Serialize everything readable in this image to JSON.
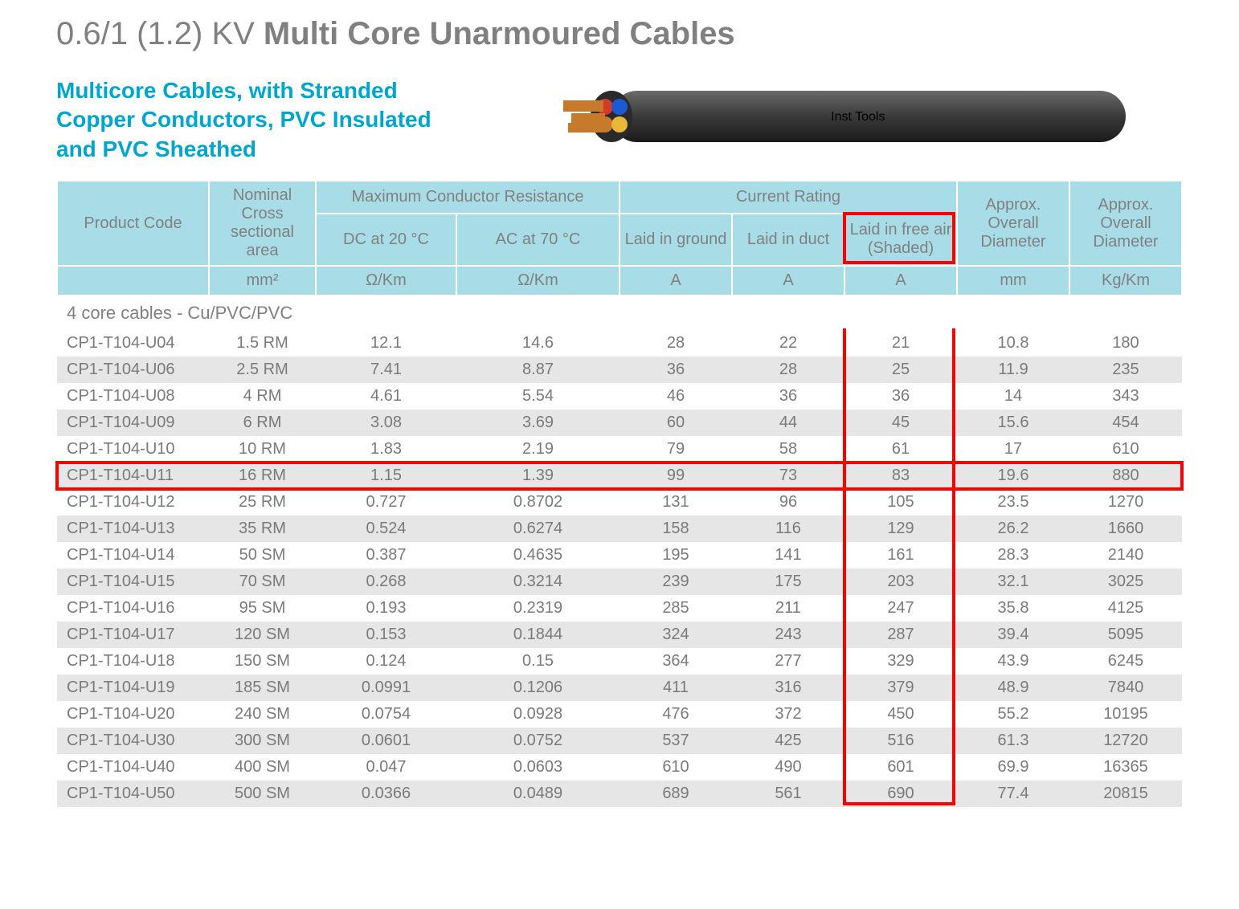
{
  "title_prefix": "0.6/1 (1.2) KV  ",
  "title_bold": "Multi Core Unarmoured Cables",
  "subtitle": "Multicore Cables, with Stranded Copper Conductors, PVC Insulated and PVC Sheathed",
  "watermark": "Inst Tools",
  "header": {
    "product_code": "Product Code",
    "cross_section": "Nominal Cross sectional area",
    "max_resistance": "Maximum Conductor Resistance",
    "dc20": "DC at 20 °C",
    "ac70": "AC at 70 °C",
    "current_rating": "Current Rating",
    "laid_ground": "Laid in ground",
    "laid_duct": "Laid in duct",
    "laid_air": "Laid in free air (Shaded)",
    "diameter": "Approx. Overall Diameter",
    "weight": "Approx. Overall Diameter",
    "u_mm2": "mm²",
    "u_ohmkm": "Ω/Km",
    "u_a": "A",
    "u_mm": "mm",
    "u_kgkm": "Kg/Km"
  },
  "section_label": "4 core cables - Cu/PVC/PVC",
  "rows": [
    {
      "code": "CP1-T104-U04",
      "mm2": "1.5 RM",
      "dc": "12.1",
      "ac": "14.6",
      "g": "28",
      "d": "22",
      "a": "21",
      "dia": "10.8",
      "kg": "180"
    },
    {
      "code": "CP1-T104-U06",
      "mm2": "2.5 RM",
      "dc": "7.41",
      "ac": "8.87",
      "g": "36",
      "d": "28",
      "a": "25",
      "dia": "11.9",
      "kg": "235"
    },
    {
      "code": "CP1-T104-U08",
      "mm2": "4 RM",
      "dc": "4.61",
      "ac": "5.54",
      "g": "46",
      "d": "36",
      "a": "36",
      "dia": "14",
      "kg": "343"
    },
    {
      "code": "CP1-T104-U09",
      "mm2": "6 RM",
      "dc": "3.08",
      "ac": "3.69",
      "g": "60",
      "d": "44",
      "a": "45",
      "dia": "15.6",
      "kg": "454"
    },
    {
      "code": "CP1-T104-U10",
      "mm2": "10 RM",
      "dc": "1.83",
      "ac": "2.19",
      "g": "79",
      "d": "58",
      "a": "61",
      "dia": "17",
      "kg": "610"
    },
    {
      "code": "CP1-T104-U11",
      "mm2": "16 RM",
      "dc": "1.15",
      "ac": "1.39",
      "g": "99",
      "d": "73",
      "a": "83",
      "dia": "19.6",
      "kg": "880",
      "highlight": true
    },
    {
      "code": "CP1-T104-U12",
      "mm2": "25 RM",
      "dc": "0.727",
      "ac": "0.8702",
      "g": "131",
      "d": "96",
      "a": "105",
      "dia": "23.5",
      "kg": "1270"
    },
    {
      "code": "CP1-T104-U13",
      "mm2": "35 RM",
      "dc": "0.524",
      "ac": "0.6274",
      "g": "158",
      "d": "116",
      "a": "129",
      "dia": "26.2",
      "kg": "1660"
    },
    {
      "code": "CP1-T104-U14",
      "mm2": "50 SM",
      "dc": "0.387",
      "ac": "0.4635",
      "g": "195",
      "d": "141",
      "a": "161",
      "dia": "28.3",
      "kg": "2140"
    },
    {
      "code": "CP1-T104-U15",
      "mm2": "70 SM",
      "dc": "0.268",
      "ac": "0.3214",
      "g": "239",
      "d": "175",
      "a": "203",
      "dia": "32.1",
      "kg": "3025"
    },
    {
      "code": "CP1-T104-U16",
      "mm2": "95 SM",
      "dc": "0.193",
      "ac": "0.2319",
      "g": "285",
      "d": "211",
      "a": "247",
      "dia": "35.8",
      "kg": "4125"
    },
    {
      "code": "CP1-T104-U17",
      "mm2": "120 SM",
      "dc": "0.153",
      "ac": "0.1844",
      "g": "324",
      "d": "243",
      "a": "287",
      "dia": "39.4",
      "kg": "5095"
    },
    {
      "code": "CP1-T104-U18",
      "mm2": "150 SM",
      "dc": "0.124",
      "ac": "0.15",
      "g": "364",
      "d": "277",
      "a": "329",
      "dia": "43.9",
      "kg": "6245"
    },
    {
      "code": "CP1-T104-U19",
      "mm2": "185 SM",
      "dc": "0.0991",
      "ac": "0.1206",
      "g": "411",
      "d": "316",
      "a": "379",
      "dia": "48.9",
      "kg": "7840"
    },
    {
      "code": "CP1-T104-U20",
      "mm2": "240 SM",
      "dc": "0.0754",
      "ac": "0.0928",
      "g": "476",
      "d": "372",
      "a": "450",
      "dia": "55.2",
      "kg": "10195"
    },
    {
      "code": "CP1-T104-U30",
      "mm2": "300 SM",
      "dc": "0.0601",
      "ac": "0.0752",
      "g": "537",
      "d": "425",
      "a": "516",
      "dia": "61.3",
      "kg": "12720"
    },
    {
      "code": "CP1-T104-U40",
      "mm2": "400 SM",
      "dc": "0.047",
      "ac": "0.0603",
      "g": "610",
      "d": "490",
      "a": "601",
      "dia": "69.9",
      "kg": "16365"
    },
    {
      "code": "CP1-T104-U50",
      "mm2": "500 SM",
      "dc": "0.0366",
      "ac": "0.0489",
      "g": "689",
      "d": "561",
      "a": "690",
      "dia": "77.4",
      "kg": "20815"
    }
  ],
  "colors": {
    "header_bg": "#a8dde8",
    "accent": "#00a6ce",
    "row_alt": "#e6e6e6",
    "highlight": "#ff0000",
    "text": "#808080"
  },
  "col_widths_pct": [
    13.5,
    9.5,
    12.5,
    14.5,
    10,
    10,
    10,
    10,
    10
  ]
}
